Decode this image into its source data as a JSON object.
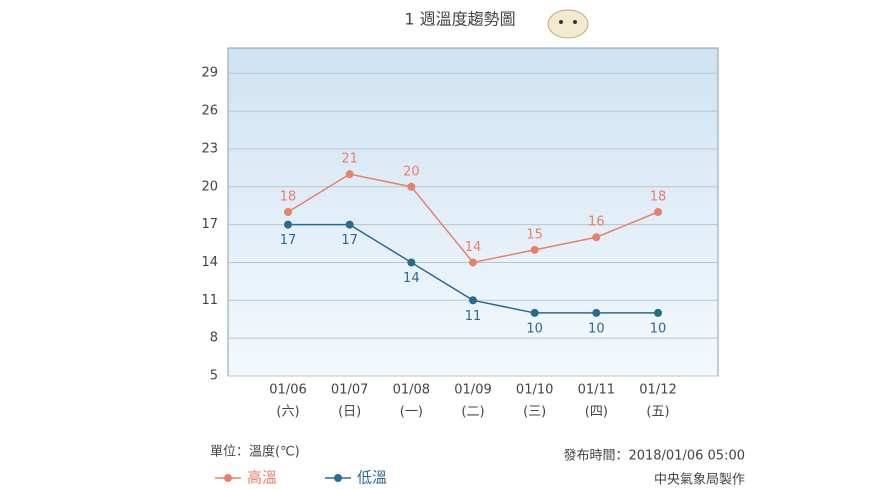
{
  "chart_data": {
    "type": "line",
    "title": "1 週溫度趨勢圖",
    "categories": [
      "01/06",
      "01/07",
      "01/08",
      "01/09",
      "01/10",
      "01/11",
      "01/12"
    ],
    "category_sublabels": [
      "(六)",
      "(日)",
      "(一)",
      "(二)",
      "(三)",
      "(四)",
      "(五)"
    ],
    "series": [
      {
        "name": "高溫",
        "color": "#e8806a",
        "values": [
          18,
          21,
          20,
          14,
          15,
          16,
          18
        ]
      },
      {
        "name": "低溫",
        "color": "#2b6a8f",
        "values": [
          17,
          17,
          14,
          11,
          10,
          10,
          10
        ]
      }
    ],
    "ylim": [
      5,
      31
    ],
    "yticks": [
      5,
      8,
      11,
      14,
      17,
      20,
      23,
      26,
      29
    ],
    "grid": true,
    "unit_label": "單位：溫度(℃)",
    "published": "發布時間：2018/01/06 05:00",
    "credit": "中央氣象局製作"
  }
}
